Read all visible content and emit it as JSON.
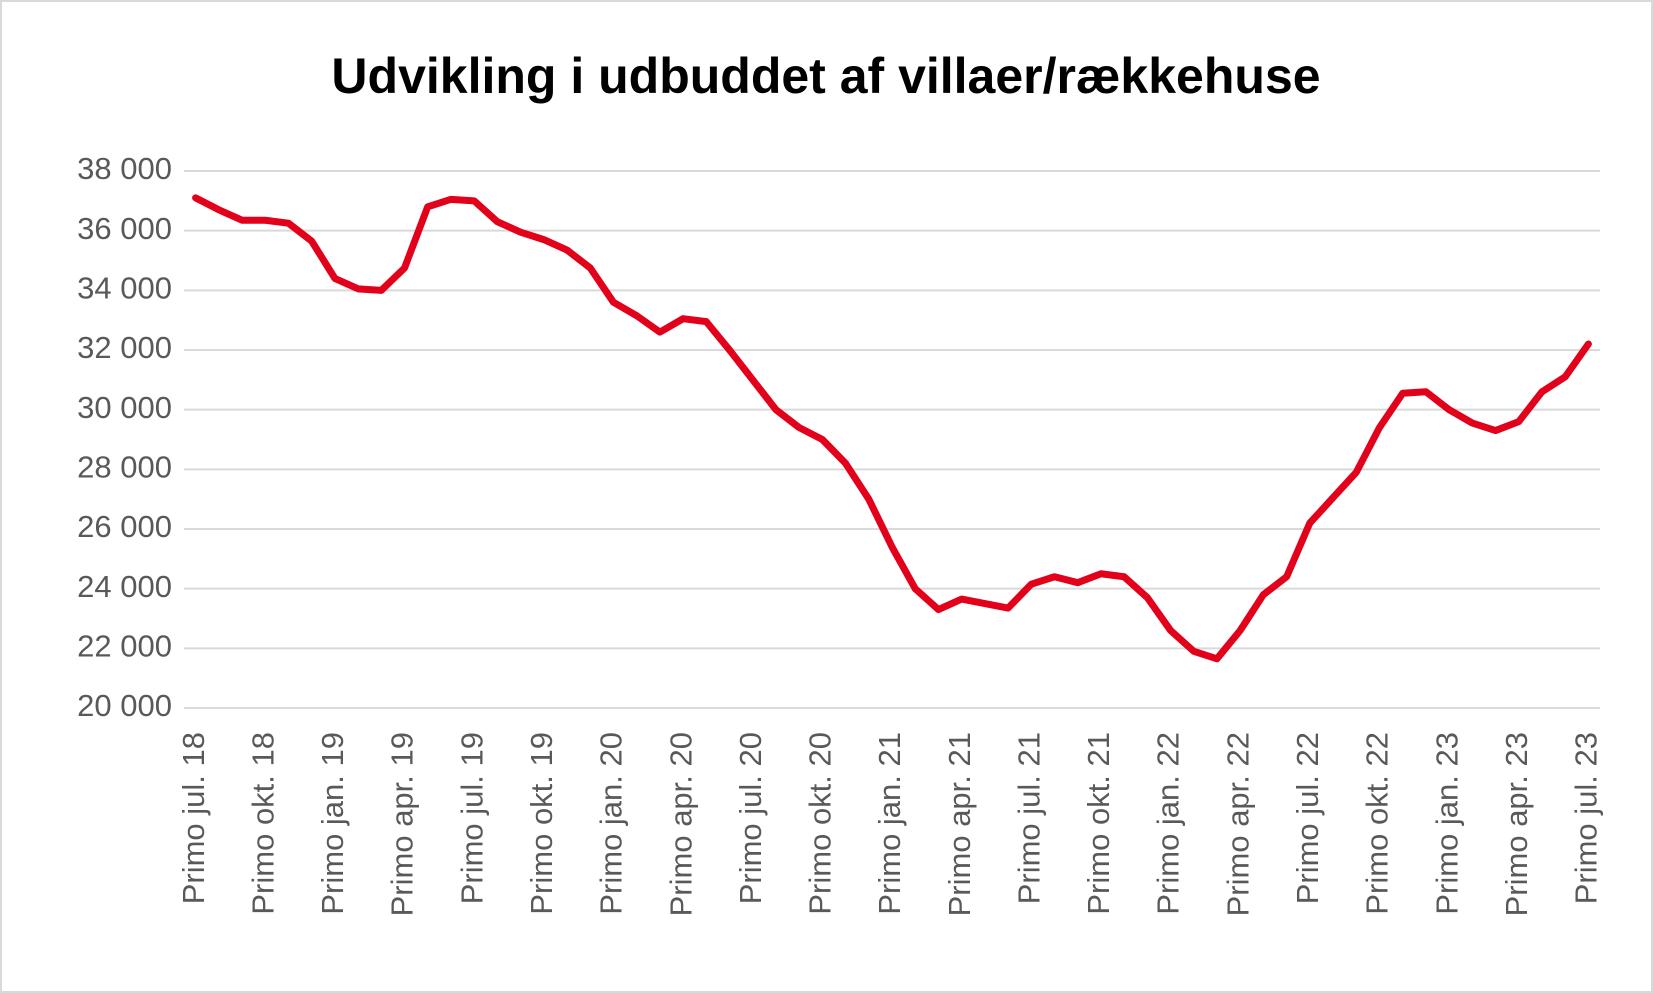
{
  "chart_data": {
    "type": "line",
    "title": "Udvikling i udbuddet af villaer/rækkehuse",
    "categories": [
      "Primo jul. 18",
      null,
      null,
      "Primo okt. 18",
      null,
      null,
      "Primo jan. 19",
      null,
      null,
      "Primo apr. 19",
      null,
      null,
      "Primo jul. 19",
      null,
      null,
      "Primo okt. 19",
      null,
      null,
      "Primo jan. 20",
      null,
      null,
      "Primo apr. 20",
      null,
      null,
      "Primo jul. 20",
      null,
      null,
      "Primo okt. 20",
      null,
      null,
      "Primo jan. 21",
      null,
      null,
      "Primo apr. 21",
      null,
      null,
      "Primo jul. 21",
      null,
      null,
      "Primo okt. 21",
      null,
      null,
      "Primo jan. 22",
      null,
      null,
      "Primo apr. 22",
      null,
      null,
      "Primo jul. 22",
      null,
      null,
      "Primo okt. 22",
      null,
      null,
      "Primo jan. 23",
      null,
      null,
      "Primo apr. 23",
      null,
      null,
      "Primo jul. 23"
    ],
    "values": [
      37100,
      36700,
      36350,
      36350,
      36250,
      35650,
      34400,
      34050,
      34000,
      34750,
      36800,
      37050,
      37000,
      36300,
      35950,
      35700,
      35350,
      34750,
      33600,
      33150,
      32600,
      33050,
      32950,
      32000,
      31000,
      30000,
      29400,
      29000,
      28200,
      27000,
      25400,
      24000,
      23300,
      23650,
      23500,
      23350,
      24150,
      24400,
      24200,
      24500,
      24400,
      23700,
      22600,
      21900,
      21650,
      22600,
      23800,
      24400,
      26200,
      27050,
      27900,
      29400,
      30550,
      30600,
      30000,
      29550,
      29300,
      29600,
      30600,
      31100,
      32200
    ],
    "color": "#e2001a",
    "ylim": [
      20000,
      38000
    ],
    "yticks": [
      {
        "value": 20000,
        "label": "20 000"
      },
      {
        "value": 22000,
        "label": "22 000"
      },
      {
        "value": 24000,
        "label": "24 000"
      },
      {
        "value": 26000,
        "label": "26 000"
      },
      {
        "value": 28000,
        "label": "28 000"
      },
      {
        "value": 30000,
        "label": "30 000"
      },
      {
        "value": 32000,
        "label": "32 000"
      },
      {
        "value": 34000,
        "label": "34 000"
      },
      {
        "value": 36000,
        "label": "36 000"
      },
      {
        "value": 38000,
        "label": "38 000"
      }
    ],
    "grid": true
  }
}
